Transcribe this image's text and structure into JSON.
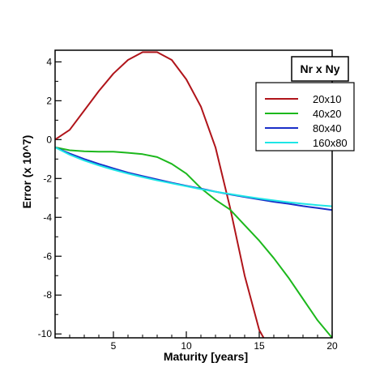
{
  "chart_data": {
    "type": "line",
    "xlabel": "Maturity  [years]",
    "ylabel": "Error (x 10^7)",
    "xlim": [
      1,
      20
    ],
    "ylim": [
      -10.2,
      4.6
    ],
    "x_ticks": [
      5,
      10,
      15,
      20
    ],
    "y_ticks": [
      4,
      2,
      0,
      -2,
      -4,
      -6,
      -8,
      -10
    ],
    "grid": false,
    "legend": {
      "title": "Nr x Ny",
      "position": "top-right"
    },
    "series": [
      {
        "name": "20x10",
        "color": "#b0141a",
        "x": [
          1,
          2,
          3,
          4,
          5,
          6,
          7,
          8,
          9,
          10,
          11,
          12,
          13,
          14,
          15,
          15.3
        ],
        "y": [
          0.0,
          0.5,
          1.5,
          2.5,
          3.4,
          4.1,
          4.5,
          4.5,
          4.1,
          3.1,
          1.7,
          -0.4,
          -3.5,
          -7.0,
          -9.8,
          -10.2
        ]
      },
      {
        "name": "40x20",
        "color": "#1cb81c",
        "x": [
          1,
          2,
          3,
          4,
          5,
          6,
          7,
          8,
          9,
          10,
          11,
          12,
          13,
          14,
          15,
          16,
          17,
          18,
          19,
          20
        ],
        "y": [
          -0.4,
          -0.55,
          -0.6,
          -0.62,
          -0.62,
          -0.68,
          -0.75,
          -0.9,
          -1.25,
          -1.75,
          -2.5,
          -3.1,
          -3.6,
          -4.4,
          -5.2,
          -6.1,
          -7.1,
          -8.2,
          -9.3,
          -10.2
        ]
      },
      {
        "name": "80x40",
        "color": "#1a2fc8",
        "x": [
          1,
          2,
          3,
          4,
          5,
          6,
          7,
          8,
          9,
          10,
          11,
          12,
          13,
          14,
          15,
          16,
          17,
          18,
          19,
          20
        ],
        "y": [
          -0.4,
          -0.72,
          -1.0,
          -1.25,
          -1.48,
          -1.7,
          -1.88,
          -2.05,
          -2.22,
          -2.38,
          -2.52,
          -2.68,
          -2.82,
          -2.95,
          -3.08,
          -3.2,
          -3.3,
          -3.42,
          -3.52,
          -3.62
        ]
      },
      {
        "name": "160x80",
        "color": "#1ee6e6",
        "x": [
          1,
          2,
          3,
          4,
          5,
          6,
          7,
          8,
          9,
          10,
          11,
          12,
          13,
          14,
          15,
          16,
          17,
          18,
          19,
          20
        ],
        "y": [
          -0.4,
          -0.78,
          -1.08,
          -1.33,
          -1.55,
          -1.75,
          -1.93,
          -2.1,
          -2.25,
          -2.4,
          -2.55,
          -2.68,
          -2.8,
          -2.92,
          -3.03,
          -3.13,
          -3.22,
          -3.3,
          -3.37,
          -3.43
        ]
      }
    ]
  }
}
